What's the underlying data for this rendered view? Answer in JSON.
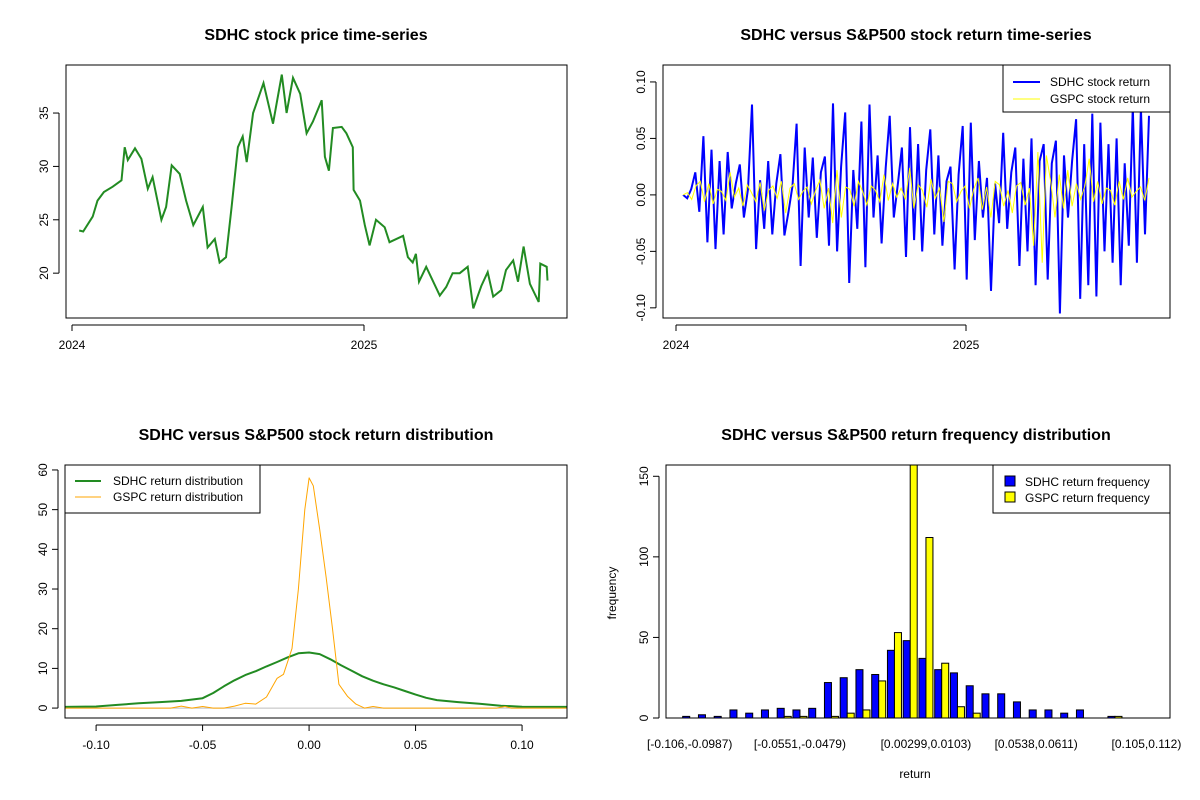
{
  "chart_data": [
    {
      "type": "line",
      "title": "SDHC stock price time-series",
      "xlabel": "",
      "ylabel": "",
      "x_ticks": [
        "2024",
        "2025"
      ],
      "y_ticks": [
        20,
        25,
        30,
        35
      ],
      "xlim": [
        "2023-12-24",
        "2025-09-12"
      ],
      "ylim": [
        15.8,
        39.5
      ],
      "grid": false,
      "colors": {
        "line": "#228B22"
      },
      "series": [
        {
          "points": [
            [
              "2024-01-10",
              24.0
            ],
            [
              "2024-01-15",
              23.9
            ],
            [
              "2024-01-27",
              25.3
            ],
            [
              "2024-02-02",
              26.8
            ],
            [
              "2024-02-10",
              27.6
            ],
            [
              "2024-02-21",
              28.1
            ],
            [
              "2024-03-03",
              28.7
            ],
            [
              "2024-03-07",
              31.8
            ],
            [
              "2024-03-11",
              30.6
            ],
            [
              "2024-03-20",
              31.7
            ],
            [
              "2024-03-28",
              30.7
            ],
            [
              "2024-04-05",
              27.9
            ],
            [
              "2024-04-11",
              29.0
            ],
            [
              "2024-04-22",
              25.0
            ],
            [
              "2024-04-28",
              26.2
            ],
            [
              "2024-05-05",
              30.1
            ],
            [
              "2024-05-15",
              29.3
            ],
            [
              "2024-05-23",
              26.8
            ],
            [
              "2024-06-01",
              24.5
            ],
            [
              "2024-06-13",
              26.2
            ],
            [
              "2024-06-19",
              22.4
            ],
            [
              "2024-06-28",
              23.2
            ],
            [
              "2024-07-04",
              21.0
            ],
            [
              "2024-07-12",
              21.5
            ],
            [
              "2024-07-19",
              26.2
            ],
            [
              "2024-07-27",
              31.8
            ],
            [
              "2024-08-02",
              32.8
            ],
            [
              "2024-08-07",
              30.4
            ],
            [
              "2024-08-15",
              35.0
            ],
            [
              "2024-08-28",
              37.8
            ],
            [
              "2024-09-09",
              34.0
            ],
            [
              "2024-09-20",
              38.6
            ],
            [
              "2024-09-26",
              35.0
            ],
            [
              "2024-10-04",
              38.3
            ],
            [
              "2024-10-13",
              36.8
            ],
            [
              "2024-10-21",
              33.1
            ],
            [
              "2024-10-29",
              34.2
            ],
            [
              "2024-11-09",
              36.2
            ],
            [
              "2024-11-13",
              30.9
            ],
            [
              "2024-11-18",
              29.6
            ],
            [
              "2024-11-23",
              33.6
            ],
            [
              "2024-12-04",
              33.7
            ],
            [
              "2024-12-10",
              33.1
            ],
            [
              "2024-12-18",
              31.8
            ],
            [
              "2024-12-19",
              27.8
            ],
            [
              "2024-12-27",
              26.8
            ],
            [
              "2025-01-02",
              24.5
            ],
            [
              "2025-01-08",
              22.6
            ],
            [
              "2025-01-16",
              25.0
            ],
            [
              "2025-01-27",
              24.3
            ],
            [
              "2025-02-02",
              22.9
            ],
            [
              "2025-02-19",
              23.5
            ],
            [
              "2025-02-25",
              21.5
            ],
            [
              "2025-03-03",
              21.0
            ],
            [
              "2025-03-07",
              21.8
            ],
            [
              "2025-03-11",
              19.2
            ],
            [
              "2025-03-20",
              20.6
            ],
            [
              "2025-04-06",
              17.9
            ],
            [
              "2025-04-14",
              18.7
            ],
            [
              "2025-04-22",
              20.0
            ],
            [
              "2025-05-01",
              20.0
            ],
            [
              "2025-05-11",
              20.6
            ],
            [
              "2025-05-18",
              16.7
            ],
            [
              "2025-05-28",
              18.8
            ],
            [
              "2025-06-05",
              20.1
            ],
            [
              "2025-06-12",
              17.8
            ],
            [
              "2025-06-22",
              18.4
            ],
            [
              "2025-06-28",
              20.3
            ],
            [
              "2025-07-07",
              21.2
            ],
            [
              "2025-07-13",
              19.2
            ],
            [
              "2025-07-20",
              22.5
            ],
            [
              "2025-07-28",
              19.0
            ],
            [
              "2025-08-08",
              17.3
            ],
            [
              "2025-08-10",
              20.9
            ],
            [
              "2025-08-18",
              20.6
            ],
            [
              "2025-08-19",
              19.3
            ]
          ]
        }
      ]
    },
    {
      "type": "line",
      "title": "SDHC versus S&P500 stock return time-series",
      "xlabel": "",
      "ylabel": "",
      "x_ticks": [
        "2024",
        "2025"
      ],
      "y_ticks": [
        "-0.10",
        "-0.05",
        "0.00",
        "0.05",
        "0.10"
      ],
      "xlim": [
        "2023-12-16",
        "2025-09-15"
      ],
      "ylim": [
        -0.109,
        0.115
      ],
      "x_range": [
        "2024-01-10",
        "2025-08-20"
      ],
      "grid": false,
      "legend": {
        "position": "top-right",
        "entries": [
          "SDHC stock return",
          "GSPC stock return"
        ]
      },
      "series": [
        {
          "name": "SDHC stock return",
          "color": "#0000FF",
          "values": [
            0,
            -0.003,
            0.005,
            0.02,
            -0.015,
            0.052,
            -0.042,
            0.04,
            -0.048,
            0.03,
            -0.035,
            0.038,
            -0.012,
            0.01,
            0.027,
            -0.02,
            0.005,
            0.08,
            -0.048,
            0.013,
            -0.03,
            0.03,
            -0.035,
            0.01,
            0.036,
            -0.036,
            -0.015,
            0.008,
            0.063,
            -0.063,
            0.042,
            -0.02,
            0.033,
            -0.038,
            0.02,
            0.034,
            -0.045,
            0.081,
            -0.05,
            0.025,
            0.073,
            -0.078,
            0.022,
            -0.03,
            0.065,
            -0.064,
            0.08,
            -0.02,
            0.035,
            -0.043,
            0.024,
            0.07,
            -0.02,
            0.01,
            0.042,
            -0.055,
            0.06,
            -0.04,
            0.045,
            -0.05,
            0.022,
            0.058,
            -0.035,
            0.035,
            -0.045,
            0.012,
            0.025,
            -0.066,
            0.018,
            0.061,
            -0.075,
            0.064,
            -0.04,
            0.03,
            -0.02,
            0.015,
            -0.085,
            0.01,
            -0.025,
            0.055,
            -0.03,
            0.02,
            0.042,
            -0.063,
            0.032,
            -0.05,
            0.05,
            -0.08,
            0.03,
            0.045,
            -0.075,
            0.028,
            0.048,
            -0.105,
            0.035,
            -0.02,
            0.03,
            0.067,
            -0.092,
            0.045,
            -0.08,
            0.072,
            -0.09,
            0.064,
            -0.05,
            0.045,
            -0.06,
            0.05,
            -0.08,
            0.028,
            -0.045,
            0.078,
            -0.06,
            0.077,
            -0.035,
            0.07
          ]
        },
        {
          "name": "GSPC stock return",
          "color": "#FFFF00",
          "values": [
            0,
            0.002,
            -0.004,
            0.008,
            0.012,
            -0.006,
            0.01,
            -0.008,
            0.005,
            0.003,
            -0.005,
            0.02,
            -0.002,
            0.006,
            -0.01,
            0.009,
            0.002,
            -0.006,
            0.011,
            -0.014,
            0.004,
            0.008,
            -0.003,
            0.012,
            -0.016,
            0.006,
            0.01,
            -0.004,
            0.003,
            0.007,
            -0.008,
            0.004,
            0.013,
            -0.012,
            0.006,
            -0.025,
            0.022,
            -0.02,
            0.007,
            0.005,
            -0.01,
            0.012,
            0.003,
            -0.009,
            0.008,
            0.004,
            -0.006,
            0.018,
            -0.005,
            0.01,
            -0.002,
            0.006,
            -0.004,
            0.024,
            -0.012,
            0.009,
            0.004,
            -0.011,
            0.014,
            -0.003,
            0.006,
            -0.024,
            0.012,
            0.01,
            -0.006,
            0.003,
            0.008,
            -0.012,
            0.005,
            0.015,
            -0.013,
            0.007,
            -0.02,
            0.012,
            0.009,
            -0.01,
            0.004,
            -0.016,
            0.008,
            0.011,
            -0.009,
            0.006,
            -0.045,
            0.038,
            -0.06,
            0.035,
            0.012,
            -0.02,
            0.018,
            -0.012,
            0.022,
            -0.01,
            0.01,
            -0.004,
            0.008,
            0.032,
            -0.006,
            0.012,
            -0.008,
            0.006,
            0.004,
            -0.009,
            0.012,
            -0.004,
            0.015,
            -0.002,
            0.003,
            0.007,
            -0.005,
            0.015
          ]
        }
      ]
    },
    {
      "type": "line",
      "title": "SDHC versus S&P500 stock return distribution",
      "xlabel": "",
      "ylabel": "",
      "x_ticks": [
        "-0.10",
        "-0.05",
        "0.00",
        "0.05",
        "0.10"
      ],
      "y_ticks": [
        0,
        10,
        20,
        30,
        40,
        50,
        60
      ],
      "xlim": [
        -0.1146,
        0.1211
      ],
      "ylim": [
        -2.5,
        61.25
      ],
      "grid": false,
      "baseline_color": "#BEBEBE",
      "legend": {
        "position": "top-left",
        "entries": [
          "SDHC return distribution",
          "GSPC return distribution"
        ]
      },
      "series": [
        {
          "name": "SDHC return distribution",
          "color": "#228B22",
          "x": [
            -0.115,
            -0.1,
            -0.09,
            -0.08,
            -0.07,
            -0.06,
            -0.05,
            -0.045,
            -0.04,
            -0.035,
            -0.03,
            -0.025,
            -0.02,
            -0.015,
            -0.01,
            -0.005,
            0,
            0.005,
            0.01,
            0.015,
            0.02,
            0.025,
            0.03,
            0.035,
            0.04,
            0.045,
            0.05,
            0.055,
            0.06,
            0.07,
            0.08,
            0.09,
            0.1,
            0.121
          ],
          "y": [
            0.3,
            0.4,
            0.8,
            1.2,
            1.5,
            1.8,
            2.5,
            3.8,
            5.5,
            7,
            8.3,
            9.3,
            10.5,
            11.6,
            12.8,
            13.8,
            14,
            13.6,
            12.3,
            10.8,
            9.4,
            8,
            6.9,
            6,
            5.2,
            4.3,
            3.4,
            2.6,
            2,
            1.5,
            1.1,
            0.6,
            0.35,
            0.3
          ]
        },
        {
          "name": "GSPC return distribution",
          "color": "#FFA500",
          "x": [
            -0.115,
            -0.065,
            -0.06,
            -0.055,
            -0.05,
            -0.045,
            -0.04,
            -0.035,
            -0.03,
            -0.025,
            -0.02,
            -0.015,
            -0.012,
            -0.008,
            -0.005,
            -0.002,
            0,
            0.002,
            0.005,
            0.008,
            0.011,
            0.014,
            0.018,
            0.022,
            0.026,
            0.03,
            0.035,
            0.088,
            0.092,
            0.095,
            0.121
          ],
          "y": [
            0,
            0,
            0.5,
            0,
            0.4,
            0,
            0,
            0.5,
            1.2,
            1,
            2.8,
            7.5,
            8.5,
            15,
            30,
            50,
            58,
            56,
            45,
            33,
            20,
            6,
            3,
            1,
            0,
            0.4,
            0,
            0,
            0.4,
            0,
            0
          ]
        }
      ]
    },
    {
      "type": "bar",
      "title": "SDHC versus S&P500 return frequency distribution",
      "xlabel": "return",
      "ylabel": "frequency",
      "y_ticks": [
        0,
        50,
        100,
        150
      ],
      "ylim": [
        0,
        157
      ],
      "grid": false,
      "x_tick_labels": [
        {
          "bin": 0,
          "label": "[-0.106,-0.0987)"
        },
        {
          "bin": 7,
          "label": "[-0.0551,-0.0479)"
        },
        {
          "bin": 15,
          "label": "[0.00299,0.0103)"
        },
        {
          "bin": 22,
          "label": "[0.0538,0.0611)"
        },
        {
          "bin": 29,
          "label": "[0.105,0.112)"
        }
      ],
      "legend": {
        "position": "top-right",
        "entries": [
          "SDHC return frequency",
          "GSPC return frequency"
        ]
      },
      "series": [
        {
          "name": "SDHC return frequency",
          "color": "#0000FF",
          "values": [
            1,
            2,
            1,
            5,
            3,
            5,
            6,
            5,
            6,
            22,
            25,
            30,
            27,
            42,
            48,
            37,
            30,
            28,
            20,
            15,
            15,
            10,
            5,
            5,
            3,
            5,
            0,
            1,
            0,
            0
          ]
        },
        {
          "name": "GSPC return frequency",
          "color": "#FFFF00",
          "values": [
            0,
            0,
            0,
            0,
            0,
            0,
            1,
            1,
            0,
            1,
            3,
            5,
            23,
            53,
            170,
            112,
            34,
            7,
            3,
            0,
            0,
            0,
            0,
            0,
            0,
            0,
            0,
            1,
            0,
            0
          ]
        }
      ]
    }
  ]
}
